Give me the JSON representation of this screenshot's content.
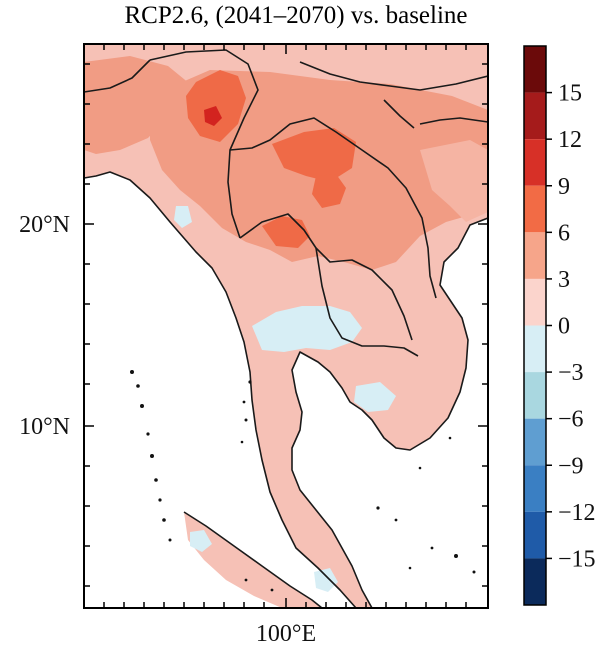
{
  "title": "RCP2.6, (2041–2070) vs. baseline",
  "axes": {
    "latitude_labels": [
      "20°N",
      "10°N"
    ],
    "longitude_labels": [
      "100°E"
    ]
  },
  "colorbar": {
    "tick_labels": [
      "15",
      "12",
      "9",
      "6",
      "3",
      "0",
      "−3",
      "−6",
      "−9",
      "−12",
      "−15"
    ],
    "bins": [
      {
        "range": "> 15",
        "color": "#6b0a0a"
      },
      {
        "range": "12 to 15",
        "color": "#a51b1b"
      },
      {
        "range": "9 to 12",
        "color": "#d73027"
      },
      {
        "range": "6 to 9",
        "color": "#f26b45"
      },
      {
        "range": "3 to 6",
        "color": "#f6a58a"
      },
      {
        "range": "0 to 3",
        "color": "#fbd4cc"
      },
      {
        "range": "-3 to 0",
        "color": "#d7eef5"
      },
      {
        "range": "-6 to -3",
        "color": "#a9d7e0"
      },
      {
        "range": "-9 to -6",
        "color": "#5f9ed1"
      },
      {
        "range": "-12 to -9",
        "color": "#3a7fc3"
      },
      {
        "range": "-15 to -12",
        "color": "#1f5ba8"
      },
      {
        "range": "< -15",
        "color": "#0b2a5b"
      }
    ]
  },
  "colors": {
    "land_base": "#f6c1b6",
    "warm_moderate": "#f19c84",
    "warm_strong": "#ef6a47",
    "warm_peak": "#d3231f",
    "cool_slight": "#d7eef5",
    "ocean": "#ffffff",
    "border": "#1a1a1a"
  }
}
